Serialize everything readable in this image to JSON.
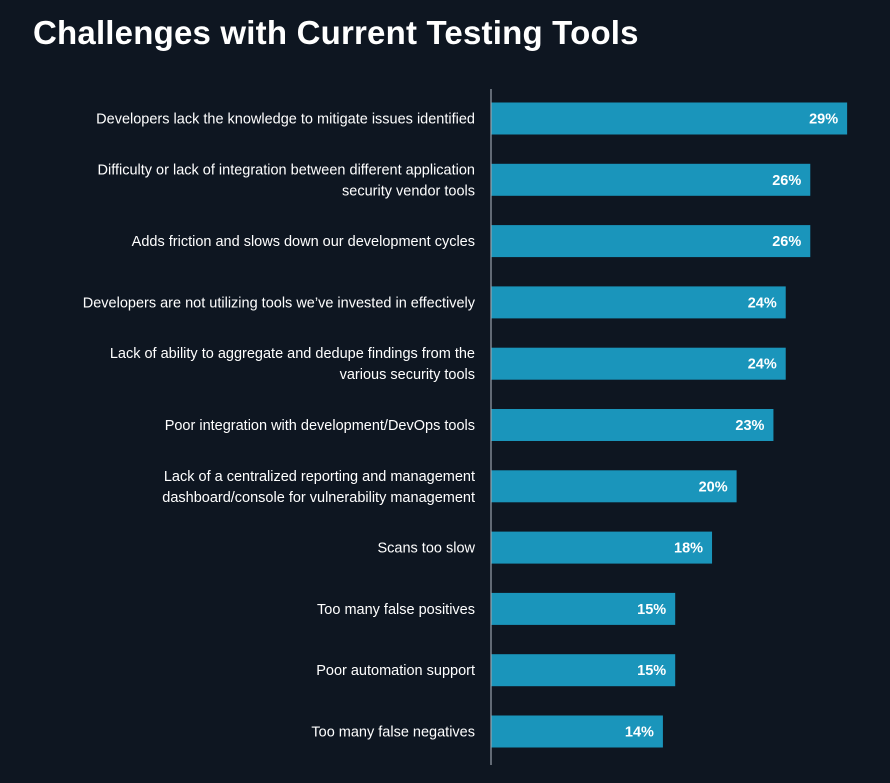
{
  "colors": {
    "background": "#0e1621",
    "bar": "#1a95bb",
    "axis": "#9aa3ad",
    "text": "#ffffff"
  },
  "chart_data": {
    "type": "bar",
    "orientation": "horizontal",
    "title": "Challenges with Current Testing Tools",
    "xlabel": "",
    "ylabel": "",
    "grid": false,
    "legend": "none",
    "value_suffix": "%",
    "xlim": [
      0,
      30
    ],
    "categories": [
      [
        "Developers lack the knowledge to mitigate issues identified"
      ],
      [
        "Difficulty or lack of integration between different application",
        "security  vendor tools"
      ],
      [
        "Adds friction and slows down our development cycles"
      ],
      [
        "Developers  are not utilizing tools we’ve invested in effectively"
      ],
      [
        "Lack of ability to aggregate and dedupe findings from the",
        "various security tools"
      ],
      [
        "Poor integration with development/DevOps tools"
      ],
      [
        "Lack of a centralized reporting and management",
        "dashboard/console for vulnerability management"
      ],
      [
        "Scans too slow"
      ],
      [
        "Too many false positives"
      ],
      [
        "Poor automation support"
      ],
      [
        "Too many false negatives"
      ]
    ],
    "values": [
      29,
      26,
      26,
      24,
      24,
      23,
      20,
      18,
      15,
      15,
      14
    ],
    "data_labels": [
      "29%",
      "26%",
      "26%",
      "24%",
      "24%",
      "23%",
      "20%",
      "18%",
      "15%",
      "15%",
      "14%"
    ]
  }
}
